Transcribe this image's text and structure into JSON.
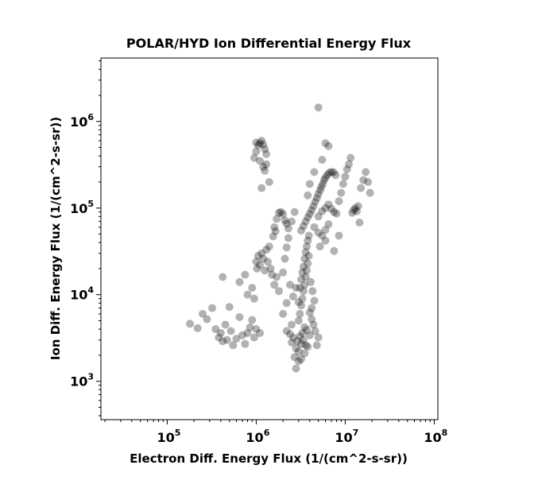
{
  "chart_data": {
    "type": "scatter",
    "title": "POLAR/HYD  Ion Differential Energy Flux",
    "xlabel": "Electron Diff. Energy Flux (1/(cm^2-s-sr))",
    "ylabel": "Ion Diff. Energy Flux (1/(cm^2-s-sr))",
    "xscale": "log",
    "yscale": "log",
    "xlim": [
      18000,
      110000000
    ],
    "ylim": [
      360,
      5400000
    ],
    "xticks": [
      {
        "value": 100000,
        "base": "10",
        "exp": "5"
      },
      {
        "value": 1000000,
        "base": "10",
        "exp": "6"
      },
      {
        "value": 10000000,
        "base": "10",
        "exp": "7"
      },
      {
        "value": 100000000,
        "base": "10",
        "exp": "8"
      }
    ],
    "yticks": [
      {
        "value": 1000,
        "base": "10",
        "exp": "3"
      },
      {
        "value": 10000,
        "base": "10",
        "exp": "4"
      },
      {
        "value": 100000,
        "base": "10",
        "exp": "5"
      },
      {
        "value": 1000000,
        "base": "10",
        "exp": "6"
      }
    ],
    "grid": false,
    "marker_color": "#000000",
    "marker_opacity": 0.3,
    "points": [
      [
        180000,
        4600
      ],
      [
        220000,
        4100
      ],
      [
        250000,
        6000
      ],
      [
        280000,
        5200
      ],
      [
        320000,
        7000
      ],
      [
        350000,
        4000
      ],
      [
        380000,
        3200
      ],
      [
        400000,
        3600
      ],
      [
        420000,
        2900
      ],
      [
        450000,
        4500
      ],
      [
        470000,
        3000
      ],
      [
        500000,
        7200
      ],
      [
        520000,
        3800
      ],
      [
        550000,
        2600
      ],
      [
        600000,
        3100
      ],
      [
        650000,
        5500
      ],
      [
        700000,
        3400
      ],
      [
        750000,
        2700
      ],
      [
        800000,
        3600
      ],
      [
        850000,
        4200
      ],
      [
        900000,
        5100
      ],
      [
        950000,
        3200
      ],
      [
        1000000,
        4000
      ],
      [
        1100000,
        3600
      ],
      [
        420000,
        16000
      ],
      [
        650000,
        14000
      ],
      [
        750000,
        17000
      ],
      [
        800000,
        10000
      ],
      [
        900000,
        12000
      ],
      [
        950000,
        9000
      ],
      [
        1000000,
        24000
      ],
      [
        1020000,
        20000
      ],
      [
        1050000,
        28000
      ],
      [
        1100000,
        22000
      ],
      [
        1150000,
        30000
      ],
      [
        1200000,
        26000
      ],
      [
        1250000,
        19000
      ],
      [
        1300000,
        33000
      ],
      [
        1350000,
        24000
      ],
      [
        1400000,
        36000
      ],
      [
        1450000,
        20000
      ],
      [
        1500000,
        17000
      ],
      [
        1600000,
        13000
      ],
      [
        1700000,
        16000
      ],
      [
        1800000,
        11000
      ],
      [
        1550000,
        47000
      ],
      [
        1600000,
        60000
      ],
      [
        1700000,
        75000
      ],
      [
        1800000,
        88000
      ],
      [
        1900000,
        90000
      ],
      [
        2000000,
        85000
      ],
      [
        2100000,
        72000
      ],
      [
        2200000,
        66000
      ],
      [
        2300000,
        58000
      ],
      [
        1650000,
        54000
      ],
      [
        1000000,
        570000
      ],
      [
        1050000,
        530000
      ],
      [
        1100000,
        560000
      ],
      [
        1150000,
        600000
      ],
      [
        1200000,
        540000
      ],
      [
        1250000,
        480000
      ],
      [
        1300000,
        420000
      ],
      [
        1000000,
        450000
      ],
      [
        950000,
        380000
      ],
      [
        1100000,
        350000
      ],
      [
        1200000,
        300000
      ],
      [
        1300000,
        320000
      ],
      [
        1400000,
        200000
      ],
      [
        1250000,
        270000
      ],
      [
        1150000,
        170000
      ],
      [
        2800000,
        2400
      ],
      [
        2900000,
        2900
      ],
      [
        3000000,
        2200
      ],
      [
        3100000,
        3300
      ],
      [
        3200000,
        2700
      ],
      [
        3300000,
        3600
      ],
      [
        3400000,
        3000
      ],
      [
        3500000,
        4200
      ],
      [
        3600000,
        2600
      ],
      [
        3700000,
        3900
      ],
      [
        2500000,
        2800
      ],
      [
        2600000,
        3200
      ],
      [
        2400000,
        3500
      ],
      [
        2700000,
        1900
      ],
      [
        3000000,
        1700
      ],
      [
        2800000,
        1400
      ],
      [
        3200000,
        1800
      ],
      [
        3500000,
        2100
      ],
      [
        3800000,
        2500
      ],
      [
        4000000,
        3400
      ],
      [
        3000000,
        5000
      ],
      [
        3100000,
        6000
      ],
      [
        3200000,
        7500
      ],
      [
        3300000,
        9000
      ],
      [
        3400000,
        11000
      ],
      [
        3500000,
        13000
      ],
      [
        3600000,
        16000
      ],
      [
        3700000,
        19000
      ],
      [
        3800000,
        23000
      ],
      [
        3900000,
        28000
      ],
      [
        3000000,
        8200
      ],
      [
        3100000,
        12000
      ],
      [
        3200000,
        15000
      ],
      [
        3300000,
        18000
      ],
      [
        3400000,
        21000
      ],
      [
        3500000,
        26000
      ],
      [
        3600000,
        31000
      ],
      [
        3700000,
        36000
      ],
      [
        3800000,
        42000
      ],
      [
        3900000,
        48000
      ],
      [
        3200000,
        55000
      ],
      [
        3400000,
        62000
      ],
      [
        3600000,
        70000
      ],
      [
        3800000,
        78000
      ],
      [
        4000000,
        86000
      ],
      [
        4200000,
        95000
      ],
      [
        4400000,
        105000
      ],
      [
        4600000,
        118000
      ],
      [
        4800000,
        130000
      ],
      [
        5000000,
        145000
      ],
      [
        5200000,
        160000
      ],
      [
        5400000,
        175000
      ],
      [
        5600000,
        190000
      ],
      [
        5800000,
        210000
      ],
      [
        6000000,
        225000
      ],
      [
        6300000,
        240000
      ],
      [
        6600000,
        255000
      ],
      [
        7000000,
        262000
      ],
      [
        7400000,
        258000
      ],
      [
        7800000,
        240000
      ],
      [
        4500000,
        60000
      ],
      [
        5000000,
        52000
      ],
      [
        5500000,
        48000
      ],
      [
        6000000,
        56000
      ],
      [
        6500000,
        65000
      ],
      [
        5000000,
        80000
      ],
      [
        5500000,
        92000
      ],
      [
        6000000,
        100000
      ],
      [
        6500000,
        110000
      ],
      [
        7000000,
        98000
      ],
      [
        7500000,
        90000
      ],
      [
        8000000,
        86000
      ],
      [
        8500000,
        120000
      ],
      [
        9000000,
        150000
      ],
      [
        9500000,
        190000
      ],
      [
        10000000,
        230000
      ],
      [
        10500000,
        280000
      ],
      [
        11000000,
        320000
      ],
      [
        11500000,
        380000
      ],
      [
        12000000,
        88000
      ],
      [
        12500000,
        95000
      ],
      [
        13000000,
        100000
      ],
      [
        13500000,
        92000
      ],
      [
        14000000,
        105000
      ],
      [
        15000000,
        170000
      ],
      [
        16000000,
        210000
      ],
      [
        17000000,
        260000
      ],
      [
        18000000,
        200000
      ],
      [
        19000000,
        150000
      ],
      [
        14500000,
        68000
      ],
      [
        5000000,
        1450000
      ],
      [
        6000000,
        560000
      ],
      [
        6500000,
        520000
      ],
      [
        5500000,
        360000
      ],
      [
        4500000,
        260000
      ],
      [
        4000000,
        190000
      ],
      [
        3800000,
        140000
      ],
      [
        2700000,
        90000
      ],
      [
        2500000,
        70000
      ],
      [
        2300000,
        45000
      ],
      [
        2200000,
        35000
      ],
      [
        2100000,
        26000
      ],
      [
        2000000,
        18000
      ],
      [
        2400000,
        13000
      ],
      [
        2600000,
        9500
      ],
      [
        2200000,
        8000
      ],
      [
        2000000,
        6000
      ],
      [
        2500000,
        4500
      ],
      [
        2200000,
        3800
      ],
      [
        4200000,
        7000
      ],
      [
        4500000,
        8500
      ],
      [
        4300000,
        11000
      ],
      [
        4100000,
        14000
      ],
      [
        4000000,
        6200
      ],
      [
        4400000,
        4500
      ],
      [
        4600000,
        3800
      ],
      [
        4800000,
        2600
      ],
      [
        4200000,
        5200
      ],
      [
        5000000,
        3200
      ],
      [
        7500000,
        32000
      ],
      [
        8500000,
        48000
      ],
      [
        6000000,
        42000
      ],
      [
        5200000,
        36000
      ],
      [
        2800000,
        12000
      ]
    ]
  }
}
